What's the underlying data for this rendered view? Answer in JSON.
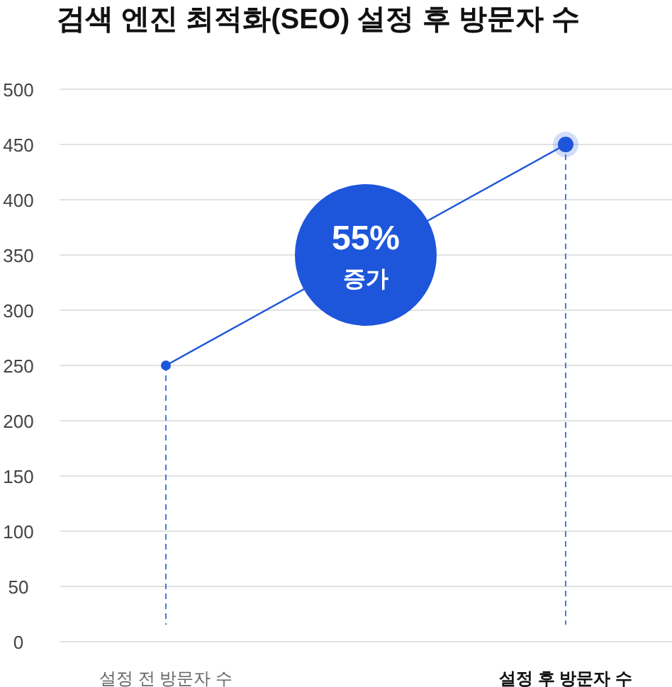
{
  "chart_data": {
    "type": "line",
    "title": "검색 엔진 최적화(SEO) 설정 후 방문자 수",
    "categories": [
      "설정 전 방문자 수",
      "설정 후 방문자 수"
    ],
    "series": [
      {
        "color": "#1d56db",
        "values": [
          250,
          450
        ]
      }
    ],
    "ylim": [
      0,
      500
    ],
    "yticks": [
      0,
      50,
      100,
      150,
      200,
      250,
      300,
      350,
      400,
      450,
      500
    ],
    "grid": "y",
    "marker": "circle",
    "line_style": "solid",
    "annotations": [
      "55%",
      "증가"
    ],
    "ref_lines": [
      {
        "axis": "x",
        "value": "설정 전 방문자 수",
        "color": "#1d56db",
        "line_style": "dashed"
      },
      {
        "axis": "x",
        "value": "설정 후 방문자 수",
        "color": "#1d56db",
        "line_style": "dashed"
      }
    ]
  }
}
